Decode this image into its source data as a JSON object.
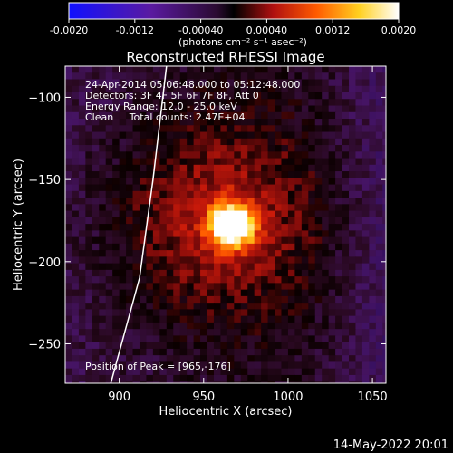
{
  "chart_data": {
    "type": "heatmap",
    "title": "Reconstructed RHESSI Image",
    "xlabel": "Heliocentric X (arcsec)",
    "ylabel": "Heliocentric Y (arcsec)",
    "xlim": [
      868,
      1058
    ],
    "ylim": [
      -274,
      -81
    ],
    "xticks": [
      900,
      950,
      1000,
      1050
    ],
    "yticks": [
      -100,
      -150,
      -200,
      -250
    ],
    "colorbar": {
      "range": [
        -0.002,
        0.002
      ],
      "tick_labels": [
        "-0.0020",
        "-0.0012",
        "-0.00040",
        "0.00040",
        "0.0012",
        "0.0020"
      ],
      "label": "(photons cm⁻² s⁻¹ asec⁻²)",
      "colors": [
        "#1010ff",
        "#5a1aa0",
        "#3a1038",
        "#000000",
        "#b01010",
        "#ff5a00",
        "#ffd020",
        "#ffffff"
      ]
    },
    "info_lines": [
      "24-Apr-2014 05:06:48.000 to 05:12:48.000",
      "Detectors: 3F 4F 5F 6F 7F 8F, Att 0",
      "Energy Range: 12.0 - 25.0 keV",
      "Clean     Total counts: 2.47E+04"
    ],
    "peak_label": "Position of Peak = [965,-176]",
    "peak": {
      "x": 965,
      "y": -176,
      "value": 0.002
    },
    "limb_curve": [
      [
        928,
        -81
      ],
      [
        920,
        -150
      ],
      [
        912,
        -210
      ],
      [
        895,
        -274
      ]
    ],
    "timestamp": "14-May-2022 20:01"
  }
}
